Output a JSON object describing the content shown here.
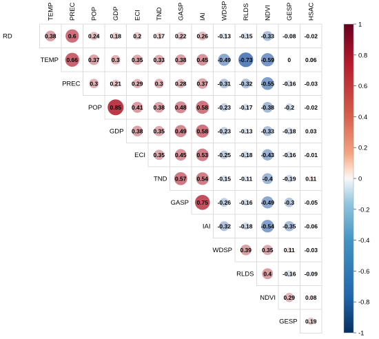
{
  "chart_data": {
    "type": "heatmap",
    "variables": [
      "RD",
      "TEMP",
      "PREC",
      "POP",
      "GDP",
      "ECI",
      "TND",
      "GASP",
      "IAI",
      "WDSP",
      "RLDS",
      "NDVI",
      "GESP",
      "HSAC"
    ],
    "column_labels": [
      "TEMP",
      "PREC",
      "POP",
      "GDP",
      "ECI",
      "TND",
      "GASP",
      "IAI",
      "WDSP",
      "RLDS",
      "NDVI",
      "GESP",
      "HSAC"
    ],
    "row_labels": [
      "RD",
      "TEMP",
      "PREC",
      "POP",
      "GDP",
      "ECI",
      "TND",
      "GASP",
      "IAI",
      "WDSP",
      "RLDS",
      "NDVI",
      "GESP"
    ],
    "rows": [
      {
        "label": "RD",
        "values": [
          0.38,
          0.6,
          0.24,
          0.18,
          0.2,
          0.17,
          0.22,
          0.26,
          -0.13,
          -0.15,
          -0.33,
          -0.08,
          -0.02
        ],
        "display": [
          "0.38",
          "0.6",
          "0.24",
          "0.18",
          "0.2",
          "0.17",
          "0.22",
          "0.26",
          "-0.13",
          "-0.15",
          "-0.33",
          "-0.08",
          "-0.02"
        ]
      },
      {
        "label": "TEMP",
        "values": [
          0.66,
          0.37,
          0.3,
          0.35,
          0.33,
          0.38,
          0.45,
          -0.49,
          -0.73,
          -0.59,
          0,
          0.06
        ],
        "display": [
          "0.66",
          "0.37",
          "0.3",
          "0.35",
          "0.33",
          "0.38",
          "0.45",
          "-0.49",
          "-0.73",
          "-0.59",
          "0",
          "0.06"
        ]
      },
      {
        "label": "PREC",
        "values": [
          0.3,
          0.21,
          0.29,
          0.3,
          0.28,
          0.37,
          -0.31,
          -0.32,
          -0.55,
          -0.16,
          -0.03
        ],
        "display": [
          "0.3",
          "0.21",
          "0.29",
          "0.3",
          "0.28",
          "0.37",
          "-0.31",
          "-0.32",
          "-0.55",
          "-0.16",
          "-0.03"
        ]
      },
      {
        "label": "POP",
        "values": [
          0.85,
          0.41,
          0.38,
          0.48,
          0.58,
          -0.23,
          -0.17,
          -0.38,
          -0.2,
          -0.02
        ],
        "display": [
          "0.85",
          "0.41",
          "0.38",
          "0.48",
          "0.58",
          "-0.23",
          "-0.17",
          "-0.38",
          "-0.2",
          "-0.02"
        ]
      },
      {
        "label": "GDP",
        "values": [
          0.38,
          0.35,
          0.49,
          0.58,
          -0.23,
          -0.13,
          -0.33,
          -0.18,
          0.03
        ],
        "display": [
          "0.38",
          "0.35",
          "0.49",
          "0.58",
          "-0.23",
          "-0.13",
          "-0.33",
          "-0.18",
          "0.03"
        ]
      },
      {
        "label": "ECI",
        "values": [
          0.35,
          0.45,
          0.53,
          -0.25,
          -0.18,
          -0.43,
          -0.16,
          -0.01
        ],
        "display": [
          "0.35",
          "0.45",
          "0.53",
          "-0.25",
          "-0.18",
          "-0.43",
          "-0.16",
          "-0.01"
        ]
      },
      {
        "label": "TND",
        "values": [
          0.57,
          0.54,
          -0.15,
          -0.11,
          -0.4,
          -0.19,
          0.11
        ],
        "display": [
          "0.57",
          "0.54",
          "-0.15",
          "-0.11",
          "-0.4",
          "-0.19",
          "0.11"
        ]
      },
      {
        "label": "GASP",
        "values": [
          0.75,
          -0.26,
          -0.16,
          -0.49,
          -0.3,
          -0.05
        ],
        "display": [
          "0.75",
          "-0.26",
          "-0.16",
          "-0.49",
          "-0.3",
          "-0.05"
        ]
      },
      {
        "label": "IAI",
        "values": [
          -0.32,
          -0.18,
          -0.54,
          -0.35,
          -0.06
        ],
        "display": [
          "-0.32",
          "-0.18",
          "-0.54",
          "-0.35",
          "-0.06"
        ]
      },
      {
        "label": "WDSP",
        "values": [
          0.39,
          0.35,
          0.11,
          -0.03
        ],
        "display": [
          "0.39",
          "0.35",
          "0.11",
          "-0.03"
        ]
      },
      {
        "label": "RLDS",
        "values": [
          0.4,
          -0.16,
          -0.09
        ],
        "display": [
          "0.4",
          "-0.16",
          "-0.09"
        ]
      },
      {
        "label": "NDVI",
        "values": [
          0.29,
          0.08
        ],
        "display": [
          "0.29",
          "0.08"
        ]
      },
      {
        "label": "GESP",
        "values": [
          0.19
        ],
        "display": [
          "0.19"
        ]
      }
    ],
    "colorbar": {
      "range": [
        -1,
        1
      ],
      "ticks": [
        "1",
        "0.8",
        "0.6",
        "0.4",
        "0.2",
        "0",
        "-0.2",
        "-0.4",
        "-0.6",
        "-0.8",
        "-1"
      ],
      "colors": {
        "neg": "#1f58a8",
        "mid": "#f5f5f5",
        "pos": "#b2182b"
      }
    }
  }
}
